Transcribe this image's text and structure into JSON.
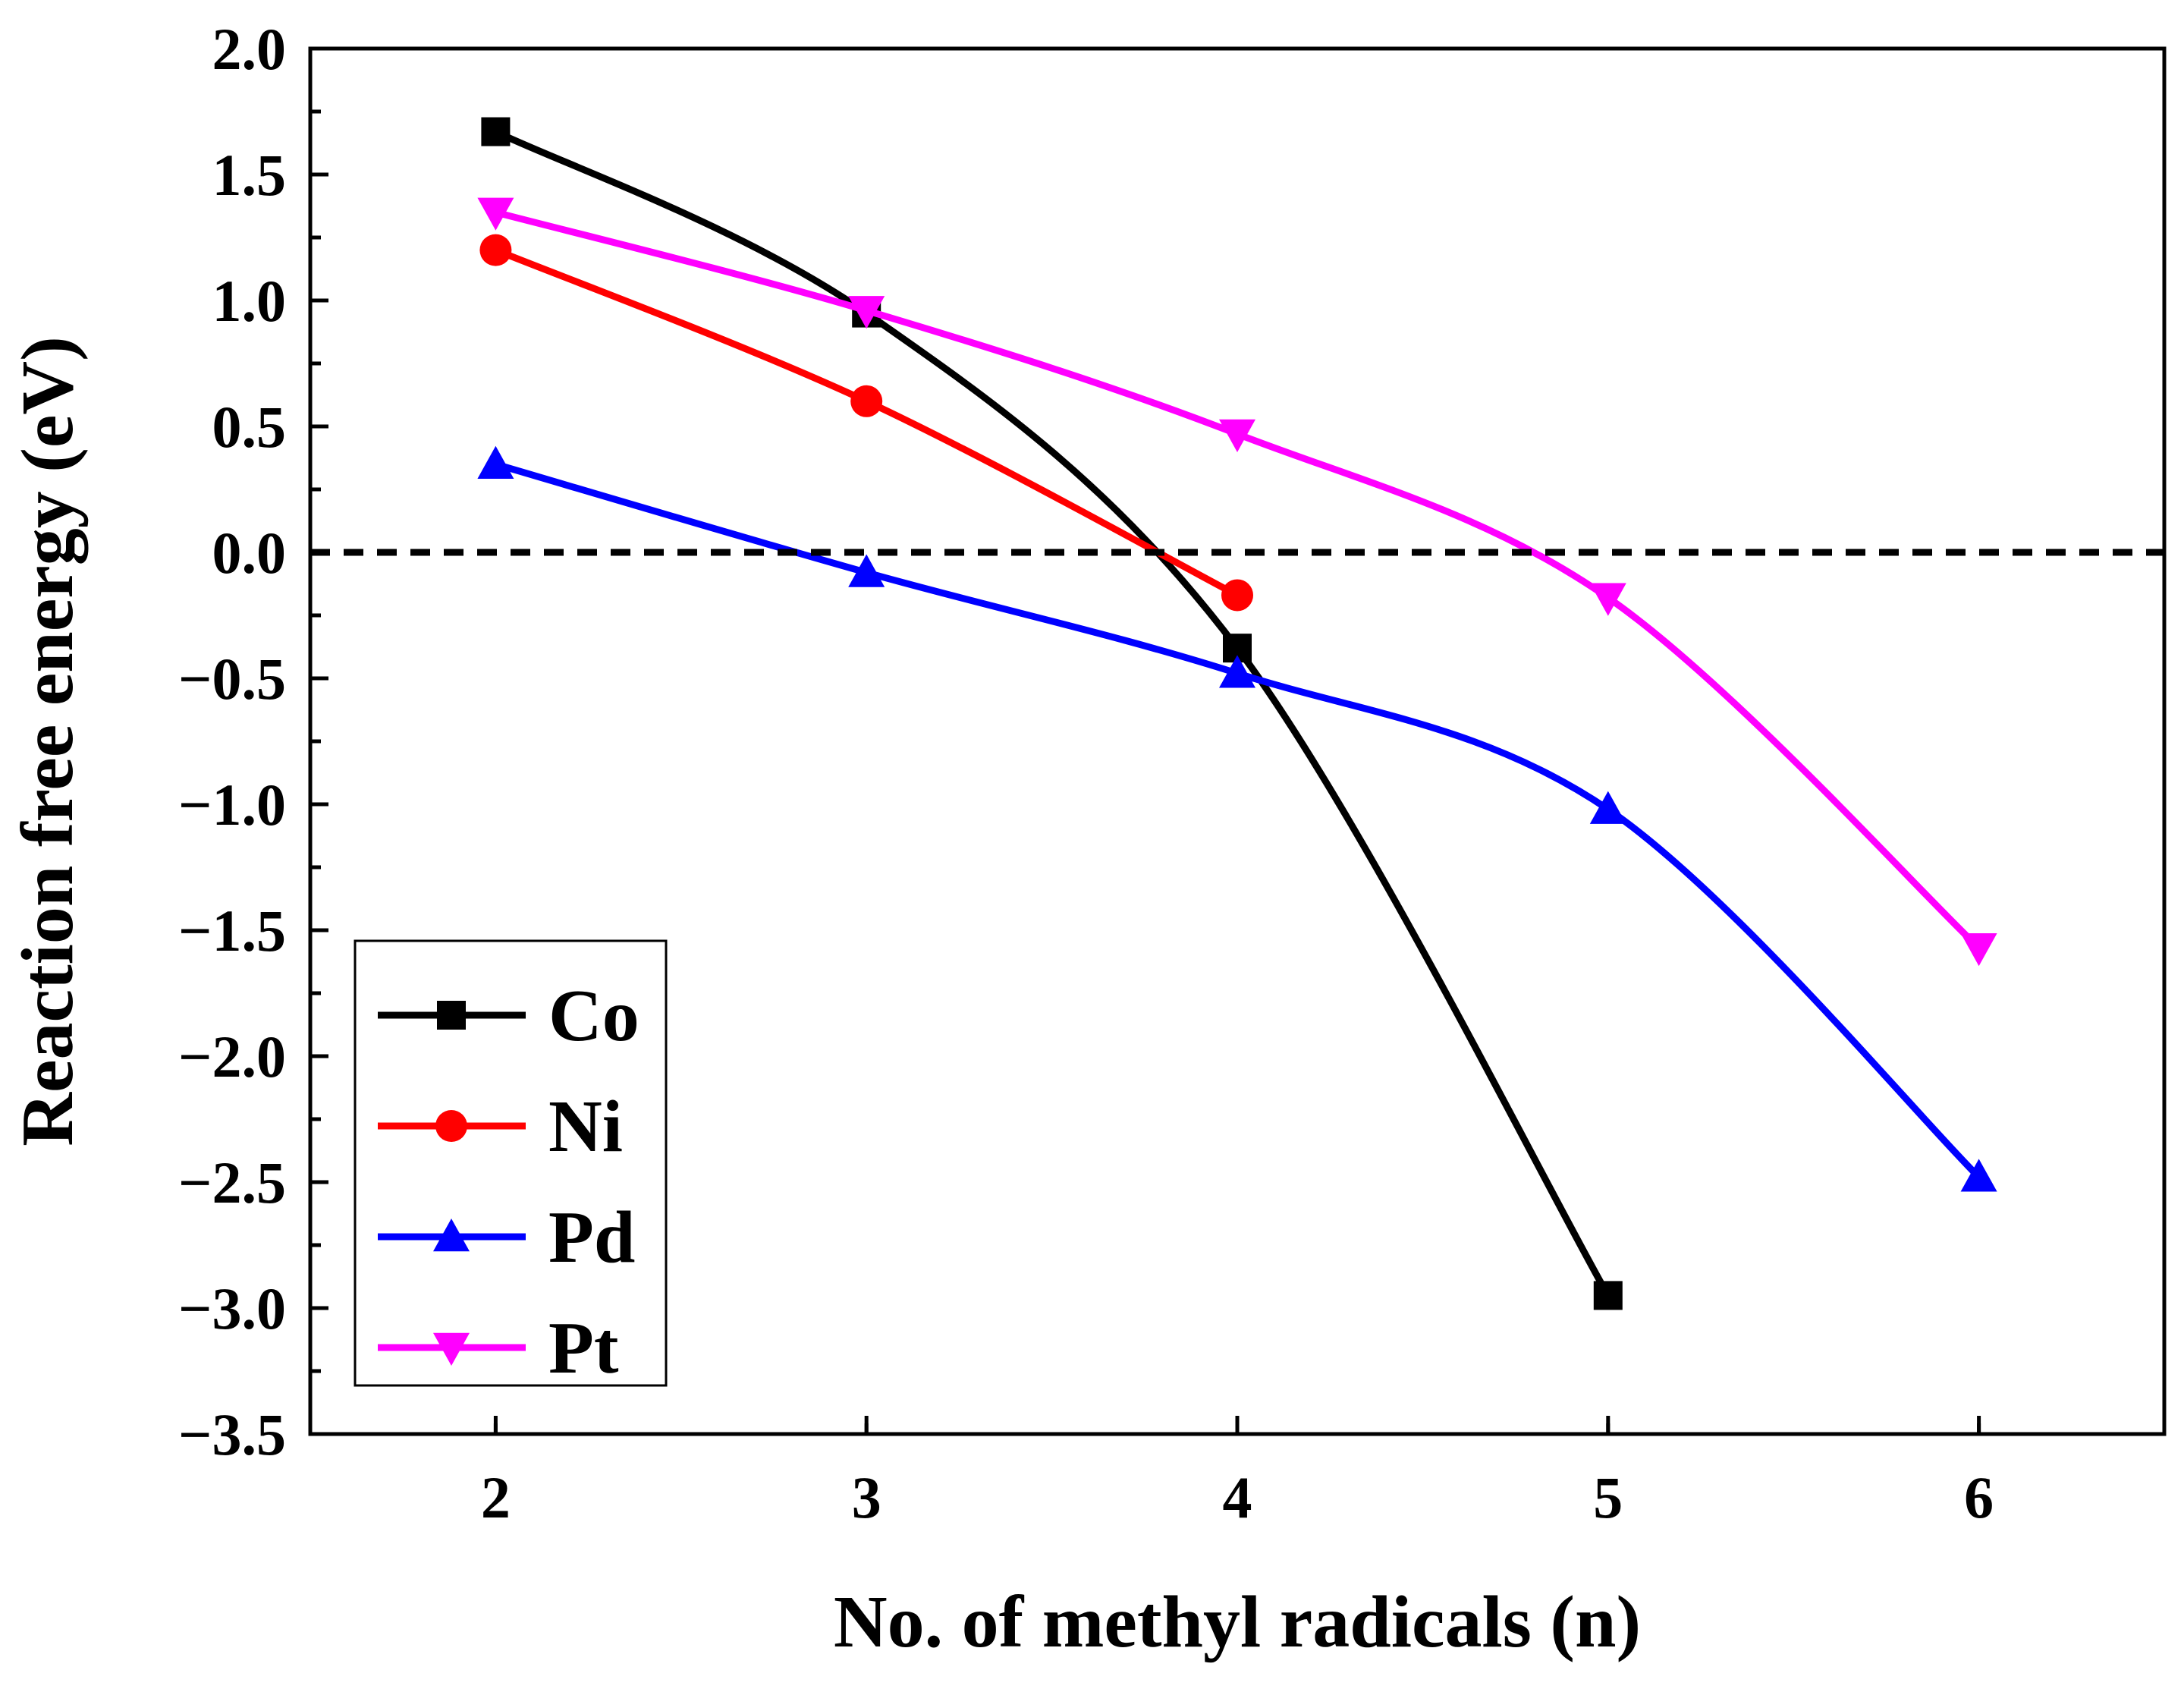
{
  "chart_data": {
    "type": "line",
    "title": "",
    "xlabel": "No. of methyl radicals (n)",
    "ylabel": "Reaction free energy (eV)",
    "xlim": [
      1.5,
      6.5
    ],
    "ylim": [
      -3.5,
      2.0
    ],
    "x_ticks": [
      2,
      3,
      4,
      5,
      6
    ],
    "x_tick_labels": [
      "2",
      "3",
      "4",
      "5",
      "6"
    ],
    "y_ticks": [
      2.0,
      1.5,
      1.0,
      0.5,
      0.0,
      -0.5,
      -1.0,
      -1.5,
      -2.0,
      -2.5,
      -3.0,
      -3.5
    ],
    "y_tick_labels": [
      "2.0",
      "1.5",
      "1.0",
      "0.5",
      "0.0",
      "−0.5",
      "−1.0",
      "−1.5",
      "−2.0",
      "−2.5",
      "−3.0",
      "−3.5"
    ],
    "reference_line": {
      "y": 0.0,
      "style": "dashed",
      "color": "#000000"
    },
    "legend_position": "bottom-left",
    "series": [
      {
        "name": "Co",
        "color": "#000000",
        "marker": "square",
        "x": [
          2,
          3,
          4,
          5
        ],
        "values": [
          1.67,
          0.95,
          -0.38,
          -2.95
        ]
      },
      {
        "name": "Ni",
        "color": "#ff0000",
        "marker": "circle",
        "x": [
          2,
          3,
          4
        ],
        "values": [
          1.2,
          0.6,
          -0.17
        ]
      },
      {
        "name": "Pd",
        "color": "#0000ff",
        "marker": "triangle-up",
        "x": [
          2,
          3,
          4,
          5,
          6
        ],
        "values": [
          0.35,
          -0.08,
          -0.48,
          -1.02,
          -2.48
        ]
      },
      {
        "name": "Pt",
        "color": "#ff00ff",
        "marker": "triangle-down",
        "x": [
          2,
          3,
          4,
          5,
          6
        ],
        "values": [
          1.35,
          0.96,
          0.47,
          -0.18,
          -1.57
        ]
      }
    ]
  }
}
